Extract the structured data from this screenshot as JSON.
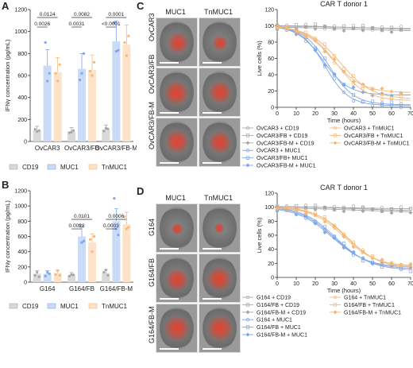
{
  "panel_labels": [
    "A",
    "B",
    "C",
    "D"
  ],
  "colors": {
    "cd19": "#a6a6a6",
    "muc1": "#7ea6e8",
    "tnmuc1": "#f5b877",
    "cd19_bar": "#d9d9d9",
    "muc1_bar": "#c9dbf7",
    "tnmuc1_bar": "#fbe2c8"
  },
  "chart_data": [
    {
      "id": "A",
      "type": "bar",
      "ylabel": "IFNγ concentration (pg/mL)",
      "ylim": [
        0,
        1200
      ],
      "yticks": [
        0,
        200,
        400,
        600,
        800,
        1000,
        1200
      ],
      "categories": [
        "OvCAR3",
        "OvCAR3/FB",
        "OvCAR3/FB-M"
      ],
      "series": [
        {
          "name": "CD19",
          "values": [
            100,
            90,
            110
          ],
          "points": [
            [
              110,
              90,
              100
            ],
            [
              80,
              85,
              100
            ],
            [
              95,
              120,
              115
            ]
          ]
        },
        {
          "name": "MUC1",
          "values": [
            690,
            660,
            910
          ],
          "points": [
            [
              900,
              550,
              620
            ],
            [
              560,
              620,
              800
            ],
            [
              1080,
              820,
              830
            ]
          ]
        },
        {
          "name": "TnMUC1",
          "values": [
            630,
            650,
            880
          ],
          "points": [
            [
              620,
              550,
              700
            ],
            [
              640,
              600,
              720
            ],
            [
              900,
              780,
              960
            ]
          ]
        }
      ],
      "brackets": [
        {
          "text": "0.0026",
          "from": "OvCAR3 CD19",
          "to": "OvCAR3 MUC1"
        },
        {
          "text": "0.0124",
          "from": "OvCAR3 CD19",
          "to": "OvCAR3 TnMUC1"
        },
        {
          "text": "0.0031",
          "from": "OvCAR3/FB CD19",
          "to": "OvCAR3/FB MUC1"
        },
        {
          "text": "0.0082",
          "from": "OvCAR3/FB CD19",
          "to": "OvCAR3/FB TnMUC1"
        },
        {
          "text": "<0.0001",
          "from": "OvCAR3/FB-M CD19",
          "to": "OvCAR3/FB-M MUC1"
        },
        {
          "text": "0.0001",
          "from": "OvCAR3/FB-M CD19",
          "to": "OvCAR3/FB-M TnMUC1"
        }
      ],
      "legend": [
        "CD19",
        "MUC1",
        "TnMUC1"
      ]
    },
    {
      "id": "B",
      "type": "bar",
      "ylabel": "IFNγ concentration (pg/mL)",
      "ylim": [
        0,
        1200
      ],
      "yticks": [
        0,
        200,
        400,
        600,
        800,
        1000,
        1200
      ],
      "categories": [
        "G164",
        "G164/FB",
        "G164/FB-M"
      ],
      "series": [
        {
          "name": "CD19",
          "values": [
            110,
            90,
            120
          ],
          "points": [
            [
              90,
              130,
              70
            ],
            [
              80,
              100,
              95
            ],
            [
              130,
              160,
              90
            ]
          ]
        },
        {
          "name": "MUC1",
          "values": [
            110,
            600,
            800
          ],
          "points": [
            [
              80,
              130,
              110
            ],
            [
              750,
              520,
              540
            ],
            [
              1100,
              700,
              620
            ]
          ]
        },
        {
          "name": "TnMUC1",
          "values": [
            120,
            520,
            760
          ],
          "points": [
            [
              100,
              150,
              90
            ],
            [
              560,
              400,
              600
            ],
            [
              860,
              700,
              720
            ]
          ]
        }
      ],
      "brackets": [
        {
          "text": "0.0028",
          "from": "G164/FB CD19",
          "to": "G164/FB MUC1"
        },
        {
          "text": "0.0101",
          "from": "G164/FB CD19",
          "to": "G164/FB TnMUC1"
        },
        {
          "text": "0.0003",
          "from": "G164/FB-M CD19",
          "to": "G164/FB-M MUC1"
        },
        {
          "text": "0.0006",
          "from": "G164/FB-M CD19",
          "to": "G164/FB-M TnMUC1"
        }
      ],
      "legend": [
        "CD19",
        "MUC1",
        "TnMUC1"
      ]
    },
    {
      "id": "C",
      "type": "scatter",
      "title": "CAR T donor 1",
      "xlabel": "Time (hours)",
      "ylabel": "Live cells (%)",
      "xlim": [
        0,
        70
      ],
      "ylim": [
        0,
        120
      ],
      "xticks": [
        0,
        10,
        20,
        30,
        40,
        50,
        60,
        70
      ],
      "yticks": [
        0,
        20,
        40,
        60,
        80,
        100,
        120
      ],
      "t_points": [
        0,
        5,
        10,
        15,
        20,
        25,
        30,
        35,
        40,
        45,
        50,
        55,
        60,
        65
      ],
      "series": [
        {
          "name": "OvCAR3 + CD19",
          "group": "cd19",
          "marker": "circle",
          "curve": {
            "top": 100,
            "bottom": 96,
            "t50": 40,
            "k": 0.05
          }
        },
        {
          "name": "OvCAR3/FB + CD19",
          "group": "cd19",
          "marker": "square",
          "curve": {
            "top": 101,
            "bottom": 95,
            "t50": 40,
            "k": 0.05
          }
        },
        {
          "name": "OvCAR3/FB-M + CD19",
          "group": "cd19",
          "marker": "diamond",
          "curve": {
            "top": 99,
            "bottom": 93,
            "t50": 40,
            "k": 0.05
          }
        },
        {
          "name": "OvCAR3 + MUC1",
          "group": "muc1",
          "marker": "circle",
          "curve": {
            "top": 100,
            "bottom": 2,
            "t50": 25,
            "k": 0.16
          }
        },
        {
          "name": "OvCAR3/FB+ MUC1",
          "group": "muc1",
          "marker": "square",
          "curve": {
            "top": 100,
            "bottom": 3,
            "t50": 27,
            "k": 0.15
          }
        },
        {
          "name": "OvCAR3/FB-M + MUC1",
          "group": "muc1",
          "marker": "diamond",
          "curve": {
            "top": 100,
            "bottom": 15,
            "t50": 24,
            "k": 0.15
          }
        },
        {
          "name": "OvCAR3 + TnMUC1",
          "group": "tnmuc1",
          "marker": "circle",
          "curve": {
            "top": 100,
            "bottom": 8,
            "t50": 31,
            "k": 0.13
          }
        },
        {
          "name": "OvCAR3/FB + TnMUC1",
          "group": "tnmuc1",
          "marker": "square",
          "curve": {
            "top": 100,
            "bottom": 10,
            "t50": 33,
            "k": 0.12
          }
        },
        {
          "name": "OvCAR3/FB-M + TnMUC1",
          "group": "tnmuc1",
          "marker": "diamond",
          "curve": {
            "top": 100,
            "bottom": 18,
            "t50": 29,
            "k": 0.13
          }
        }
      ],
      "images": {
        "columns": [
          "MUC1",
          "TnMUC1"
        ],
        "rows": [
          "OvCAR3",
          "OvCAR3/FB",
          "OvCAR3/FB-M"
        ]
      }
    },
    {
      "id": "D",
      "type": "scatter",
      "title": "CAR T donor 1",
      "xlabel": "Time (hours)",
      "ylabel": "Live cells (%)",
      "xlim": [
        0,
        70
      ],
      "ylim": [
        0,
        120
      ],
      "xticks": [
        0,
        10,
        20,
        30,
        40,
        50,
        60,
        70
      ],
      "yticks": [
        0,
        20,
        40,
        60,
        80,
        100,
        120
      ],
      "t_points": [
        0,
        5,
        10,
        15,
        20,
        25,
        30,
        35,
        40,
        45,
        50,
        55,
        60,
        65,
        70
      ],
      "series": [
        {
          "name": "G164 + CD19",
          "group": "cd19",
          "marker": "circle",
          "curve": {
            "top": 101,
            "bottom": 97,
            "t50": 40,
            "k": 0.05
          }
        },
        {
          "name": "G164/FB + CD19",
          "group": "cd19",
          "marker": "square",
          "curve": {
            "top": 102,
            "bottom": 94,
            "t50": 40,
            "k": 0.05
          }
        },
        {
          "name": "G164/FB-M + CD19",
          "group": "cd19",
          "marker": "diamond",
          "curve": {
            "top": 100,
            "bottom": 92,
            "t50": 40,
            "k": 0.05
          }
        },
        {
          "name": "G164 + MUC1",
          "group": "muc1",
          "marker": "circle",
          "curve": {
            "top": 101,
            "bottom": 12,
            "t50": 30,
            "k": 0.11
          }
        },
        {
          "name": "G164/FB + MUC1",
          "group": "muc1",
          "marker": "square",
          "curve": {
            "top": 102,
            "bottom": 10,
            "t50": 31,
            "k": 0.11
          }
        },
        {
          "name": "G164/FB-M + MUC1",
          "group": "muc1",
          "marker": "diamond",
          "curve": {
            "top": 100,
            "bottom": 14,
            "t50": 29,
            "k": 0.11
          }
        },
        {
          "name": "G164 + TnMUC1",
          "group": "tnmuc1",
          "marker": "circle",
          "curve": {
            "top": 101,
            "bottom": 15,
            "t50": 36,
            "k": 0.12
          }
        },
        {
          "name": "G164/FB + TnMUC1",
          "group": "tnmuc1",
          "marker": "square",
          "curve": {
            "top": 100,
            "bottom": 13,
            "t50": 37,
            "k": 0.12
          }
        },
        {
          "name": "G164/FB-M + TnMUC1",
          "group": "tnmuc1",
          "marker": "diamond",
          "curve": {
            "top": 100,
            "bottom": 16,
            "t50": 35,
            "k": 0.12
          }
        }
      ],
      "images": {
        "columns": [
          "MUC1",
          "TnMUC1"
        ],
        "rows": [
          "G164",
          "G164/FB",
          "G164/FB-M"
        ]
      }
    }
  ]
}
